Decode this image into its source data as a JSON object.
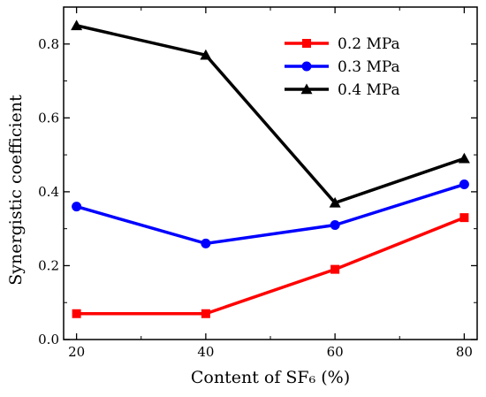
{
  "chart_data": {
    "type": "line",
    "title": "",
    "xlabel": "Content of SF₆ (%)",
    "ylabel": "Synergistic coefficient",
    "x": [
      20,
      40,
      60,
      80
    ],
    "xticks": [
      "20",
      "40",
      "60",
      "80"
    ],
    "yticks": [
      "0.0",
      "0.2",
      "0.4",
      "0.6",
      "0.8"
    ],
    "xlim": [
      18,
      82
    ],
    "ylim": [
      0,
      0.9
    ],
    "grid": false,
    "legend_position": "top-right",
    "series": [
      {
        "name": "0.2 MPa",
        "color": "#ff0000",
        "marker": "square",
        "values": [
          0.07,
          0.07,
          0.19,
          0.33
        ]
      },
      {
        "name": "0.3 MPa",
        "color": "#0000ff",
        "marker": "circle",
        "values": [
          0.36,
          0.26,
          0.31,
          0.42
        ]
      },
      {
        "name": "0.4 MPa",
        "color": "#000000",
        "marker": "triangle",
        "values": [
          0.85,
          0.77,
          0.37,
          0.49
        ]
      }
    ]
  }
}
